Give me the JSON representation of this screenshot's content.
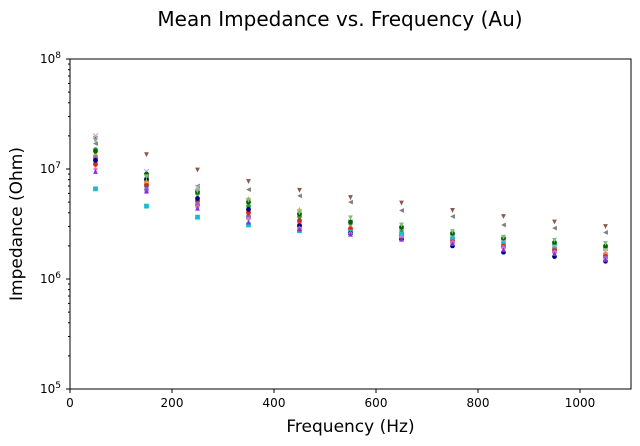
{
  "chart_data": {
    "type": "scatter",
    "title": "Mean Impedance vs. Frequency (Au)",
    "xlabel": "Frequency (Hz)",
    "ylabel": "Impedance (Ohm)",
    "xlim": [
      0,
      1100
    ],
    "ylim": [
      100000,
      100000000
    ],
    "yscale": "log",
    "grid": false,
    "legend": "none",
    "x_ticks": [
      0,
      200,
      400,
      600,
      800,
      1000
    ],
    "y_ticks": [
      {
        "value": 100000,
        "base": "10",
        "exp": "5"
      },
      {
        "value": 1000000,
        "base": "10",
        "exp": "6"
      },
      {
        "value": 10000000,
        "base": "10",
        "exp": "7"
      },
      {
        "value": 100000000,
        "base": "10",
        "exp": "8"
      }
    ],
    "x": [
      50,
      150,
      250,
      350,
      450,
      550,
      650,
      750,
      850,
      950,
      1050
    ],
    "series": [
      {
        "color": "#1f77b4",
        "marker": "circle",
        "values": [
          12500000,
          7000000,
          4700000,
          3700000,
          3000000,
          2700000,
          2450000,
          2150000,
          1950000,
          1800000,
          1650000
        ]
      },
      {
        "color": "#ff7f0e",
        "marker": "circle",
        "values": [
          11500000,
          7600000,
          5200000,
          4100000,
          3300000,
          2900000,
          2650000,
          2350000,
          2050000,
          1850000,
          1700000
        ]
      },
      {
        "color": "#2ca02c",
        "marker": "circle",
        "values": [
          15000000,
          8200000,
          6000000,
          4600000,
          3700000,
          3200000,
          2800000,
          2500000,
          2250000,
          2050000,
          1950000
        ]
      },
      {
        "color": "#d62728",
        "marker": "circle",
        "values": [
          11000000,
          7200000,
          5100000,
          4000000,
          3400000,
          2850000,
          2500000,
          2250000,
          2000000,
          1850000,
          1600000
        ]
      },
      {
        "color": "#9467bd",
        "marker": "circle",
        "values": [
          13000000,
          6500000,
          4800000,
          3600000,
          3100000,
          2700000,
          2400000,
          2150000,
          1950000,
          1750000,
          1550000
        ]
      },
      {
        "color": "#17becf",
        "marker": "square",
        "values": [
          6600000,
          4600000,
          3650000,
          3100000,
          2750000,
          2650000,
          2550000,
          2400000,
          2200000,
          2000000,
          1900000
        ]
      },
      {
        "color": "#000080",
        "marker": "circle",
        "values": [
          12000000,
          8000000,
          5400000,
          4300000,
          3050000,
          2600000,
          2300000,
          2000000,
          1750000,
          1600000,
          1450000
        ]
      },
      {
        "color": "#8c564b",
        "marker": "triangle-down",
        "values": [
          19000000,
          13500000,
          9800000,
          7700000,
          6400000,
          5500000,
          4900000,
          4200000,
          3700000,
          3300000,
          3000000
        ]
      },
      {
        "color": "#7f7f7f",
        "marker": "triangle-left",
        "values": [
          17000000,
          8800000,
          7000000,
          6500000,
          5700000,
          5000000,
          4200000,
          3700000,
          3100000,
          2900000,
          2650000
        ]
      },
      {
        "color": "#bcbd22",
        "marker": "triangle-up",
        "values": [
          14000000,
          7800000,
          6500000,
          5400000,
          4300000,
          3400000,
          3000000,
          2600000,
          2300000,
          2100000,
          1900000
        ]
      },
      {
        "color": "#e377c2",
        "marker": "diamond",
        "values": [
          10000000,
          6200000,
          4500000,
          3500000,
          2900000,
          2600000,
          2400000,
          2150000,
          1900000,
          1750000,
          1500000
        ]
      },
      {
        "color": "#c5b0d5",
        "marker": "x",
        "values": [
          20000000,
          9500000,
          6800000,
          5100000,
          4100000,
          3300000,
          2900000,
          2550000,
          2300000,
          2050000,
          1800000
        ]
      },
      {
        "color": "#006400",
        "marker": "circle",
        "values": [
          14500000,
          9000000,
          6200000,
          5000000,
          3900000,
          3300000,
          2950000,
          2600000,
          2350000,
          2150000,
          2000000
        ]
      },
      {
        "color": "#8a2be2",
        "marker": "triangle-up",
        "values": [
          9500000,
          6300000,
          4400000,
          3300000,
          2850000,
          2550000,
          2300000,
          2100000,
          1850000,
          1700000,
          1500000
        ]
      },
      {
        "color": "#7fbf7f",
        "marker": "triangle-down",
        "values": [
          18000000,
          8500000,
          6300000,
          5200000,
          4000000,
          3600000,
          3100000,
          2700000,
          2400000,
          2250000,
          2100000
        ]
      }
    ]
  }
}
